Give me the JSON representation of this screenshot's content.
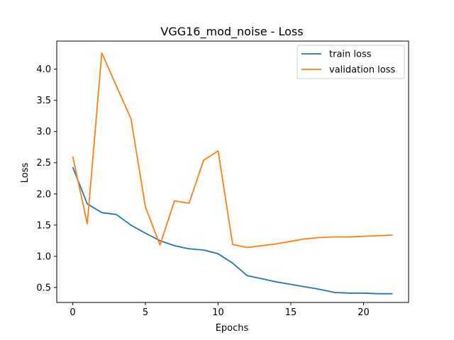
{
  "chart_data": {
    "type": "line",
    "title": "VGG16_mod_noise - Loss",
    "xlabel": "Epochs",
    "ylabel": "Loss",
    "xlim": [
      -1.1,
      23.1
    ],
    "ylim": [
      0.26,
      4.45
    ],
    "xticks": [
      0,
      5,
      10,
      15,
      20
    ],
    "yticks": [
      0.5,
      1.0,
      1.5,
      2.0,
      2.5,
      3.0,
      3.5,
      4.0
    ],
    "ytick_labels": [
      "0.5",
      "1.0",
      "1.5",
      "2.0",
      "2.5",
      "3.0",
      "3.5",
      "4.0"
    ],
    "grid": false,
    "legend_position": "upper right",
    "series": [
      {
        "name": "train loss",
        "color": "#1f77b4",
        "x": [
          0,
          1,
          2,
          3,
          4,
          5,
          6,
          7,
          8,
          9,
          10,
          11,
          12,
          13,
          14,
          15,
          16,
          17,
          18,
          19,
          20,
          21,
          22
        ],
        "values": [
          2.43,
          1.84,
          1.7,
          1.67,
          1.5,
          1.37,
          1.25,
          1.17,
          1.12,
          1.1,
          1.04,
          0.89,
          0.69,
          0.64,
          0.59,
          0.55,
          0.51,
          0.47,
          0.42,
          0.41,
          0.41,
          0.4,
          0.4
        ]
      },
      {
        "name": "validation loss",
        "color": "#ff7f0e",
        "x": [
          0,
          1,
          2,
          3,
          4,
          5,
          6,
          7,
          8,
          9,
          10,
          11,
          12,
          13,
          14,
          15,
          16,
          17,
          18,
          19,
          20,
          21,
          22
        ],
        "values": [
          2.6,
          1.52,
          4.26,
          3.73,
          3.21,
          1.79,
          1.18,
          1.89,
          1.85,
          2.54,
          2.69,
          1.19,
          1.14,
          1.17,
          1.2,
          1.24,
          1.28,
          1.3,
          1.31,
          1.31,
          1.32,
          1.33,
          1.34
        ]
      }
    ]
  }
}
